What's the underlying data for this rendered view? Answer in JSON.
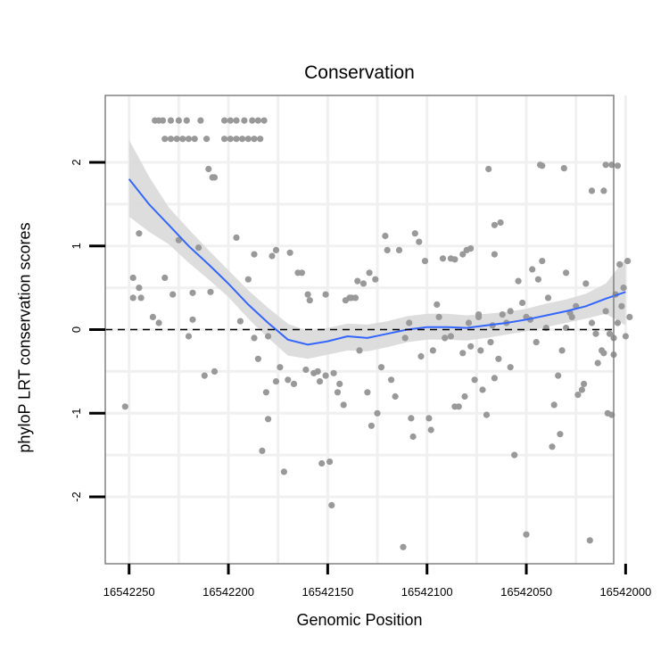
{
  "chart_data": {
    "type": "scatter",
    "title": "Conservation",
    "xlabel": "Genomic Position",
    "ylabel": "phyloP LRT conservation scores",
    "xlim": [
      16542006,
      16542262
    ],
    "x_reversed": true,
    "ylim": [
      -2.8,
      2.8
    ],
    "x_ticks": [
      16542250,
      16542200,
      16542150,
      16542100,
      16542050,
      16542000
    ],
    "x_tick_labels": [
      "16542250",
      "16542200",
      "16542150",
      "16542100",
      "16542050",
      "16542000"
    ],
    "y_ticks": [
      -2,
      -1,
      0,
      1,
      2
    ],
    "y_tick_labels": [
      "-2",
      "-1",
      "0",
      "1",
      "2"
    ],
    "reference_line": {
      "y": 0,
      "style": "dashed"
    },
    "colors": {
      "points": "#999999",
      "smooth": "#3366ff",
      "band": "#d9d9d9",
      "grid": "#f0f0f0",
      "frame": "#808080",
      "ref_line": "#000000"
    },
    "series": [
      {
        "name": "observed",
        "kind": "points",
        "points": [
          [
            16542237,
            2.5
          ],
          [
            16542235,
            2.5
          ],
          [
            16542233,
            2.5
          ],
          [
            16542229,
            2.5
          ],
          [
            16542225,
            2.5
          ],
          [
            16542221,
            2.5
          ],
          [
            16542214,
            2.5
          ],
          [
            16542202,
            2.5
          ],
          [
            16542199,
            2.5
          ],
          [
            16542196,
            2.5
          ],
          [
            16542192,
            2.5
          ],
          [
            16542188,
            2.5
          ],
          [
            16542185,
            2.5
          ],
          [
            16542182,
            2.5
          ],
          [
            16542232,
            2.28
          ],
          [
            16542229,
            2.28
          ],
          [
            16542226,
            2.28
          ],
          [
            16542223,
            2.28
          ],
          [
            16542220,
            2.28
          ],
          [
            16542217,
            2.28
          ],
          [
            16542211,
            2.28
          ],
          [
            16542202,
            2.28
          ],
          [
            16542199,
            2.28
          ],
          [
            16542196,
            2.28
          ],
          [
            16542193,
            2.28
          ],
          [
            16542190,
            2.28
          ],
          [
            16542187,
            2.28
          ],
          [
            16542184,
            2.28
          ],
          [
            16542208,
            1.82
          ],
          [
            16542207,
            1.82
          ],
          [
            16542210,
            1.92
          ],
          [
            16542069,
            1.92
          ],
          [
            16542043,
            1.97
          ],
          [
            16542042,
            1.96
          ],
          [
            16542031,
            1.93
          ],
          [
            16542017,
            1.66
          ],
          [
            16542011,
            1.66
          ],
          [
            16542010,
            1.97
          ],
          [
            16542007,
            1.97
          ],
          [
            16542004,
            1.96
          ],
          [
            16542088,
            0.85
          ],
          [
            16542086,
            0.84
          ],
          [
            16542082,
            0.9
          ],
          [
            16542080,
            0.95
          ],
          [
            16542078,
            0.97
          ],
          [
            16542066,
            1.25
          ],
          [
            16542063,
            1.28
          ],
          [
            16542066,
            0.9
          ],
          [
            16542248,
            0.62
          ],
          [
            16542244,
            0.38
          ],
          [
            16542245,
            0.5
          ],
          [
            16542248,
            0.38
          ],
          [
            16542245,
            1.15
          ],
          [
            16542238,
            0.15
          ],
          [
            16542235,
            0.08
          ],
          [
            16542232,
            0.62
          ],
          [
            16542228,
            0.42
          ],
          [
            16542225,
            1.07
          ],
          [
            16542220,
            -0.08
          ],
          [
            16542218,
            0.12
          ],
          [
            16542218,
            0.44
          ],
          [
            16542215,
            0.98
          ],
          [
            16542212,
            -0.55
          ],
          [
            16542209,
            0.45
          ],
          [
            16542207,
            -0.5
          ],
          [
            16542196,
            1.1
          ],
          [
            16542194,
            0.1
          ],
          [
            16542190,
            0.6
          ],
          [
            16542187,
            -0.1
          ],
          [
            16542187,
            0.9
          ],
          [
            16542185,
            -0.35
          ],
          [
            16542183,
            -1.45
          ],
          [
            16542181,
            -0.75
          ],
          [
            16542180,
            -1.07
          ],
          [
            16542180,
            -0.08
          ],
          [
            16542178,
            0.88
          ],
          [
            16542176,
            0.95
          ],
          [
            16542174,
            -0.45
          ],
          [
            16542172,
            -1.7
          ],
          [
            16542170,
            -0.6
          ],
          [
            16542169,
            0.92
          ],
          [
            16542167,
            -0.65
          ],
          [
            16542165,
            0.68
          ],
          [
            16542163,
            0.68
          ],
          [
            16542161,
            -0.48
          ],
          [
            16542160,
            0.42
          ],
          [
            16542159,
            0.35
          ],
          [
            16542157,
            -0.52
          ],
          [
            16542155,
            -0.5
          ],
          [
            16542154,
            -0.62
          ],
          [
            16542153,
            -1.6
          ],
          [
            16542151,
            0.42
          ],
          [
            16542151,
            -0.55
          ],
          [
            16542149,
            -1.58
          ],
          [
            16542148,
            -2.1
          ],
          [
            16542147,
            -0.52
          ],
          [
            16542145,
            -0.75
          ],
          [
            16542144,
            -0.65
          ],
          [
            16542142,
            -0.9
          ],
          [
            16542141,
            0.35
          ],
          [
            16542139,
            0.38
          ],
          [
            16542138,
            0.38
          ],
          [
            16542136,
            0.38
          ],
          [
            16542135,
            0.58
          ],
          [
            16542134,
            -0.25
          ],
          [
            16542132,
            0.55
          ],
          [
            16542130,
            -0.75
          ],
          [
            16542129,
            0.68
          ],
          [
            16542128,
            -1.15
          ],
          [
            16542126,
            0.6
          ],
          [
            16542125,
            -1.0
          ],
          [
            16542123,
            -0.45
          ],
          [
            16542121,
            1.12
          ],
          [
            16542120,
            0.95
          ],
          [
            16542118,
            -0.6
          ],
          [
            16542116,
            -0.8
          ],
          [
            16542114,
            0.95
          ],
          [
            16542112,
            -2.6
          ],
          [
            16542111,
            -0.1
          ],
          [
            16542109,
            0.08
          ],
          [
            16542108,
            -1.06
          ],
          [
            16542107,
            -1.28
          ],
          [
            16542106,
            1.15
          ],
          [
            16542104,
            1.05
          ],
          [
            16542103,
            -0.32
          ],
          [
            16542101,
            0.82
          ],
          [
            16542099,
            -1.06
          ],
          [
            16542098,
            -1.2
          ],
          [
            16542097,
            -0.25
          ],
          [
            16542095,
            0.3
          ],
          [
            16542094,
            0.15
          ],
          [
            16542092,
            0.85
          ],
          [
            16542091,
            -0.1
          ],
          [
            16542088,
            -0.08
          ],
          [
            16542086,
            -0.92
          ],
          [
            16542084,
            -0.92
          ],
          [
            16542082,
            -0.28
          ],
          [
            16542081,
            -0.8
          ],
          [
            16542079,
            0.08
          ],
          [
            16542078,
            -0.2
          ],
          [
            16542076,
            -0.6
          ],
          [
            16542074,
            0.18
          ],
          [
            16542073,
            -0.25
          ],
          [
            16542072,
            -0.72
          ],
          [
            16542070,
            -1.02
          ],
          [
            16542068,
            -0.15
          ],
          [
            16542067,
            0.05
          ],
          [
            16542066,
            -0.58
          ],
          [
            16542064,
            -0.35
          ],
          [
            16542062,
            0.18
          ],
          [
            16542060,
            0.08
          ],
          [
            16542058,
            -0.45
          ],
          [
            16542056,
            -1.5
          ],
          [
            16542054,
            0.58
          ],
          [
            16542052,
            0.32
          ],
          [
            16542050,
            -2.45
          ],
          [
            16542048,
            0.12
          ],
          [
            16542047,
            0.72
          ],
          [
            16542045,
            -0.15
          ],
          [
            16542044,
            0.6
          ],
          [
            16542042,
            0.82
          ],
          [
            16542040,
            0.02
          ],
          [
            16542039,
            0.38
          ],
          [
            16542037,
            -1.4
          ],
          [
            16542036,
            -0.9
          ],
          [
            16542034,
            -0.55
          ],
          [
            16542033,
            -1.25
          ],
          [
            16542032,
            -0.25
          ],
          [
            16542030,
            0.68
          ],
          [
            16542028,
            0.2
          ],
          [
            16542027,
            0.15
          ],
          [
            16542025,
            0.28
          ],
          [
            16542024,
            -0.78
          ],
          [
            16542022,
            -0.72
          ],
          [
            16542021,
            -0.65
          ],
          [
            16542020,
            0.55
          ],
          [
            16542018,
            -2.52
          ],
          [
            16542017,
            0.08
          ],
          [
            16542015,
            -0.05
          ],
          [
            16542014,
            -0.4
          ],
          [
            16542012,
            -0.25
          ],
          [
            16542011,
            -0.28
          ],
          [
            16542010,
            0.22
          ],
          [
            16542009,
            -1.0
          ],
          [
            16542008,
            -0.05
          ],
          [
            16542007,
            -1.02
          ],
          [
            16542006,
            -0.3
          ],
          [
            16542005,
            0.42
          ],
          [
            16542004,
            0.08
          ],
          [
            16542003,
            0.78
          ],
          [
            16542002,
            0.28
          ],
          [
            16542001,
            0.5
          ],
          [
            16541999,
            0.82
          ],
          [
            16541998,
            0.15
          ],
          [
            16542252,
            -0.92
          ],
          [
            16542176,
            -0.62
          ],
          [
            16542074,
            0.15
          ],
          [
            16542058,
            0.22
          ],
          [
            16542050,
            0.15
          ],
          [
            16542030,
            0.02
          ],
          [
            16542006,
            -0.1
          ],
          [
            16542000,
            -0.08
          ]
        ]
      },
      {
        "name": "loess fit",
        "kind": "line",
        "points": [
          [
            16542250,
            1.8
          ],
          [
            16542240,
            1.5
          ],
          [
            16542230,
            1.25
          ],
          [
            16542220,
            1.0
          ],
          [
            16542210,
            0.78
          ],
          [
            16542200,
            0.55
          ],
          [
            16542190,
            0.3
          ],
          [
            16542180,
            0.08
          ],
          [
            16542170,
            -0.12
          ],
          [
            16542160,
            -0.18
          ],
          [
            16542150,
            -0.14
          ],
          [
            16542140,
            -0.08
          ],
          [
            16542130,
            -0.1
          ],
          [
            16542120,
            -0.05
          ],
          [
            16542110,
            0.0
          ],
          [
            16542100,
            0.03
          ],
          [
            16542090,
            0.03
          ],
          [
            16542080,
            0.02
          ],
          [
            16542070,
            0.05
          ],
          [
            16542060,
            0.08
          ],
          [
            16542050,
            0.12
          ],
          [
            16542040,
            0.17
          ],
          [
            16542030,
            0.22
          ],
          [
            16542020,
            0.28
          ],
          [
            16542010,
            0.37
          ],
          [
            16542000,
            0.45
          ]
        ]
      },
      {
        "name": "confidence band",
        "kind": "band",
        "upper": [
          [
            16542250,
            2.27
          ],
          [
            16542240,
            1.83
          ],
          [
            16542230,
            1.46
          ],
          [
            16542220,
            1.2
          ],
          [
            16542210,
            0.95
          ],
          [
            16542200,
            0.71
          ],
          [
            16542190,
            0.47
          ],
          [
            16542180,
            0.26
          ],
          [
            16542170,
            0.07
          ],
          [
            16542160,
            -0.02
          ],
          [
            16542150,
            0.02
          ],
          [
            16542140,
            0.07
          ],
          [
            16542130,
            0.06
          ],
          [
            16542120,
            0.1
          ],
          [
            16542110,
            0.16
          ],
          [
            16542100,
            0.19
          ],
          [
            16542090,
            0.19
          ],
          [
            16542080,
            0.17
          ],
          [
            16542070,
            0.19
          ],
          [
            16542060,
            0.21
          ],
          [
            16542050,
            0.25
          ],
          [
            16542040,
            0.31
          ],
          [
            16542030,
            0.36
          ],
          [
            16542020,
            0.43
          ],
          [
            16542010,
            0.55
          ],
          [
            16542000,
            0.85
          ]
        ],
        "lower": [
          [
            16542250,
            1.35
          ],
          [
            16542240,
            1.17
          ],
          [
            16542230,
            1.02
          ],
          [
            16542220,
            0.8
          ],
          [
            16542210,
            0.6
          ],
          [
            16542200,
            0.39
          ],
          [
            16542190,
            0.13
          ],
          [
            16542180,
            -0.1
          ],
          [
            16542170,
            -0.31
          ],
          [
            16542160,
            -0.35
          ],
          [
            16542150,
            -0.3
          ],
          [
            16542140,
            -0.25
          ],
          [
            16542130,
            -0.26
          ],
          [
            16542120,
            -0.21
          ],
          [
            16542110,
            -0.15
          ],
          [
            16542100,
            -0.12
          ],
          [
            16542090,
            -0.12
          ],
          [
            16542080,
            -0.13
          ],
          [
            16542070,
            -0.1
          ],
          [
            16542060,
            -0.06
          ],
          [
            16542050,
            -0.02
          ],
          [
            16542040,
            0.03
          ],
          [
            16542030,
            0.08
          ],
          [
            16542020,
            0.13
          ],
          [
            16542010,
            0.19
          ],
          [
            16542000,
            0.05
          ]
        ]
      }
    ]
  }
}
